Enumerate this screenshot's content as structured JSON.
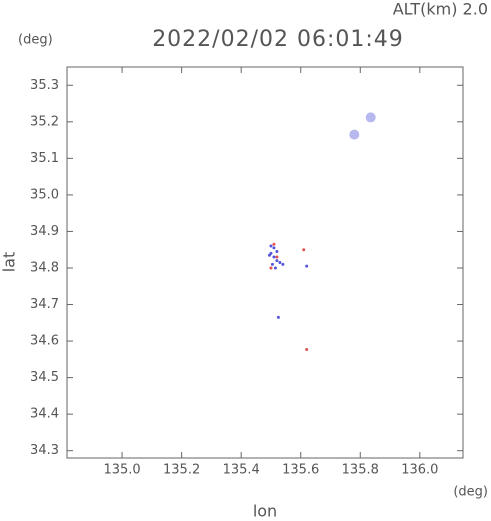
{
  "chart_data": {
    "type": "scatter",
    "title": "2022/02/02 06:01:49",
    "annotation": "ALT(km) 2.0",
    "y_unit": "(deg)",
    "x_unit": "(deg)",
    "xlabel": "lon",
    "ylabel": "lat",
    "xlim": [
      134.815,
      136.145
    ],
    "ylim": [
      34.28,
      35.35
    ],
    "xticks": [
      {
        "value": 135.0,
        "label": "135.0"
      },
      135.2,
      135.4,
      135.6,
      135.8,
      {
        "value": 136.0,
        "label": "136.0"
      }
    ],
    "yticks": [
      34.3,
      34.4,
      34.5,
      34.6,
      34.7,
      34.8,
      34.9,
      {
        "value": 35.0,
        "label": "35.0"
      },
      35.1,
      35.2,
      35.3
    ],
    "series": [
      {
        "color": "#5555dd",
        "marker_size": 1.5,
        "x": [
          135.5,
          135.51,
          135.52,
          135.505,
          135.515,
          135.53,
          135.54,
          135.5,
          135.51,
          135.62,
          135.525,
          135.495,
          135.52
        ],
        "values": [
          34.84,
          34.83,
          34.82,
          34.81,
          34.8,
          34.815,
          34.81,
          34.86,
          34.855,
          34.805,
          34.665,
          34.835,
          34.845
        ]
      },
      {
        "color": "#e05050",
        "marker_size": 1.5,
        "x": [
          135.51,
          135.52,
          135.5,
          135.61,
          135.62
        ],
        "values": [
          34.865,
          34.83,
          34.8,
          34.85,
          34.577
        ]
      },
      {
        "color": "#b8b8f0",
        "marker_size": 5,
        "x": [
          135.78,
          135.835
        ],
        "values": [
          35.165,
          35.212
        ]
      }
    ]
  }
}
